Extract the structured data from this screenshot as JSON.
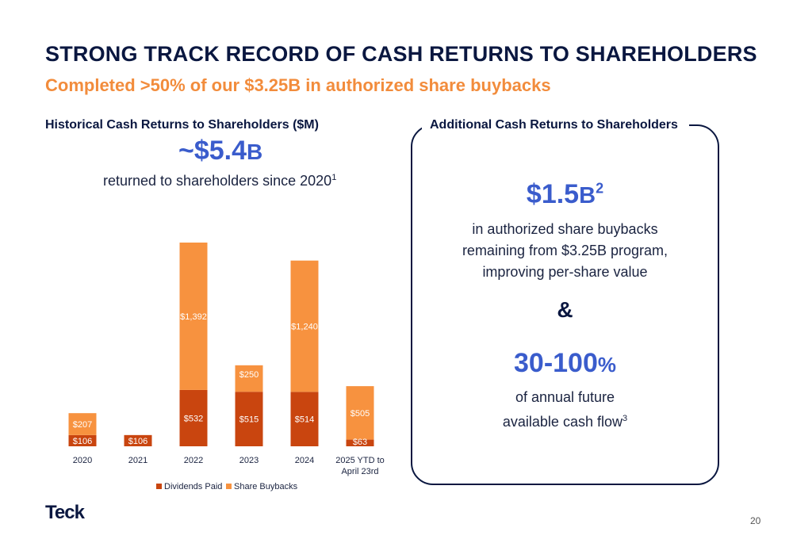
{
  "header": {
    "title": "STRONG TRACK RECORD OF CASH RETURNS TO SHAREHOLDERS",
    "subtitle": "Completed >50% of our $3.25B in authorized share buybacks"
  },
  "left_panel": {
    "chart_title": "Historical Cash Returns to Shareholders ($M)",
    "total_value": "~$5.4",
    "total_suffix": "B",
    "total_caption": "returned to shareholders since 2020",
    "total_footnote": "1"
  },
  "right_panel": {
    "title": "Additional Cash Returns to Shareholders",
    "stat1_value": "$1.5",
    "stat1_suffix": "B",
    "stat1_footnote": "2",
    "stat1_lines": [
      "in authorized share buybacks",
      "remaining from $3.25B program,",
      "improving per-share value"
    ],
    "ampersand": "&",
    "stat2_value": "30-100",
    "stat2_suffix": "%",
    "stat2_lines": [
      "of annual future",
      "available cash flow"
    ],
    "stat2_footnote": "3"
  },
  "footer": {
    "logo": "Teck",
    "page_number": "20"
  },
  "colors": {
    "dividends": "#c9450f",
    "buybacks": "#f7923f",
    "navy": "#0a1740",
    "accent_blue": "#3a5ccc",
    "subtitle_orange": "#f28c3c"
  },
  "chart_data": {
    "type": "bar",
    "stacked": true,
    "categories": [
      "2020",
      "2021",
      "2022",
      "2023",
      "2024",
      "2025 YTD to April 23rd"
    ],
    "category_labels": [
      [
        "2020"
      ],
      [
        "2021"
      ],
      [
        "2022"
      ],
      [
        "2023"
      ],
      [
        "2024"
      ],
      [
        "2025 YTD to",
        "April 23rd"
      ]
    ],
    "series": [
      {
        "name": "Dividends Paid",
        "values": [
          106,
          106,
          532,
          515,
          514,
          63
        ],
        "labels": [
          "$106",
          "$106",
          "$532",
          "$515",
          "$514",
          "$63"
        ]
      },
      {
        "name": "Share Buybacks",
        "values": [
          207,
          0,
          1392,
          250,
          1240,
          505
        ],
        "labels": [
          "$207",
          "",
          "$1,392",
          "$250",
          "$1,240",
          "$505"
        ]
      }
    ],
    "title": "Historical Cash Returns to Shareholders ($M)",
    "legend": "bottom",
    "grid": false,
    "ylim": [
      0,
      1924
    ]
  }
}
